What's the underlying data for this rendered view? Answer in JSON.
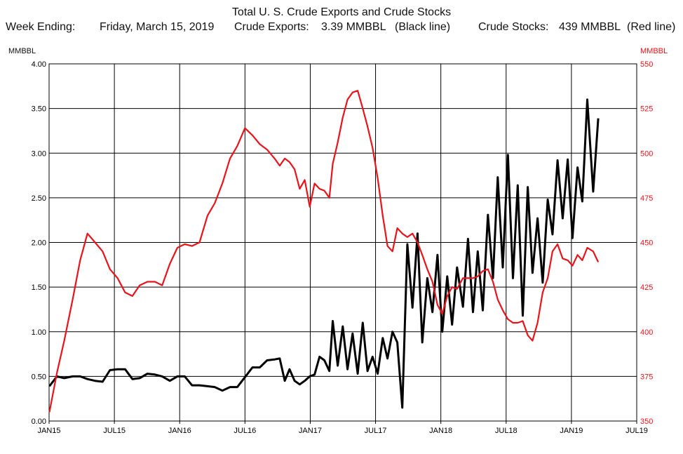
{
  "header": {
    "title": "Total U. S. Crude Exports and Crude Stocks",
    "week_label": "Week Ending:",
    "week_value": "Friday, March 15, 2019",
    "exports_label": "Crude Exports:",
    "exports_value": "3.39 MMBBL",
    "exports_note": "(Black line)",
    "stocks_label": "Crude Stocks:",
    "stocks_value": "439 MMBBL",
    "stocks_note": "(Red line)"
  },
  "colors": {
    "exports": "#000000",
    "stocks": "#e8141b",
    "grid": "#000000",
    "left_axis_text": "#000000",
    "right_axis_text": "#e8141b"
  },
  "chart_data": {
    "type": "line",
    "title": "Total U. S. Crude Exports and Crude Stocks",
    "grid": true,
    "x_ticks": [
      "JAN15",
      "JUL15",
      "JAN16",
      "JUL16",
      "JAN17",
      "JUL17",
      "JAN18",
      "JUL18",
      "JAN19",
      "JUL19"
    ],
    "x_range_months": [
      "2015-01",
      "2019-07"
    ],
    "left_axis": {
      "unit": "MMBBL",
      "ylim": [
        0,
        4
      ],
      "ticks": [
        "0.00",
        "0.50",
        "1.00",
        "1.50",
        "2.00",
        "2.50",
        "3.00",
        "3.50",
        "4.00"
      ]
    },
    "right_axis": {
      "unit": "MMBBL",
      "ylim": [
        350,
        550
      ],
      "ticks": [
        "350",
        "375",
        "400",
        "425",
        "450",
        "475",
        "500",
        "525",
        "550"
      ]
    },
    "series": [
      {
        "name": "Crude Exports",
        "axis": "left",
        "x": [
          "2015-01-02",
          "2015-01-23",
          "2015-02-13",
          "2015-03-06",
          "2015-03-27",
          "2015-04-17",
          "2015-05-08",
          "2015-05-29",
          "2015-06-19",
          "2015-07-10",
          "2015-07-31",
          "2015-08-21",
          "2015-09-11",
          "2015-10-02",
          "2015-10-23",
          "2015-11-13",
          "2015-12-04",
          "2015-12-25",
          "2016-01-15",
          "2016-02-05",
          "2016-02-26",
          "2016-03-18",
          "2016-04-08",
          "2016-04-29",
          "2016-05-20",
          "2016-06-10",
          "2016-07-01",
          "2016-07-22",
          "2016-08-12",
          "2016-09-02",
          "2016-09-23",
          "2016-10-07",
          "2016-10-21",
          "2016-11-04",
          "2016-11-18",
          "2016-12-02",
          "2016-12-16",
          "2016-12-30",
          "2017-01-13",
          "2017-01-27",
          "2017-02-10",
          "2017-02-24",
          "2017-03-03",
          "2017-03-17",
          "2017-03-31",
          "2017-04-14",
          "2017-04-28",
          "2017-05-12",
          "2017-05-26",
          "2017-06-09",
          "2017-06-23",
          "2017-07-07",
          "2017-07-21",
          "2017-08-04",
          "2017-08-18",
          "2017-09-01",
          "2017-09-15",
          "2017-09-29",
          "2017-10-13",
          "2017-10-27",
          "2017-11-10",
          "2017-11-24",
          "2017-12-08",
          "2017-12-22",
          "2018-01-05",
          "2018-01-19",
          "2018-02-02",
          "2018-02-16",
          "2018-03-02",
          "2018-03-16",
          "2018-03-30",
          "2018-04-13",
          "2018-04-27",
          "2018-05-11",
          "2018-05-25",
          "2018-06-08",
          "2018-06-22",
          "2018-07-06",
          "2018-07-20",
          "2018-08-03",
          "2018-08-17",
          "2018-08-31",
          "2018-09-14",
          "2018-09-28",
          "2018-10-12",
          "2018-10-26",
          "2018-11-09",
          "2018-11-23",
          "2018-12-07",
          "2018-12-21",
          "2019-01-04",
          "2019-01-18",
          "2019-02-01",
          "2019-02-15",
          "2019-03-01",
          "2019-03-15"
        ],
        "values": [
          0.39,
          0.5,
          0.48,
          0.5,
          0.5,
          0.47,
          0.45,
          0.44,
          0.57,
          0.58,
          0.58,
          0.47,
          0.48,
          0.53,
          0.52,
          0.5,
          0.45,
          0.5,
          0.5,
          0.4,
          0.4,
          0.39,
          0.38,
          0.34,
          0.38,
          0.38,
          0.49,
          0.6,
          0.6,
          0.68,
          0.69,
          0.7,
          0.45,
          0.58,
          0.45,
          0.41,
          0.45,
          0.5,
          0.52,
          0.72,
          0.68,
          0.56,
          1.12,
          0.62,
          1.06,
          0.58,
          0.98,
          0.53,
          1.1,
          0.56,
          0.72,
          0.53,
          0.93,
          0.7,
          1.0,
          0.88,
          0.15,
          1.98,
          1.27,
          2.1,
          0.88,
          1.6,
          1.22,
          1.86,
          1.0,
          1.62,
          1.08,
          1.72,
          1.28,
          2.04,
          1.22,
          1.9,
          1.24,
          2.31,
          1.6,
          2.73,
          1.72,
          2.98,
          1.6,
          2.64,
          1.18,
          2.62,
          1.66,
          2.27,
          1.55,
          2.48,
          2.09,
          2.92,
          2.27,
          2.93,
          2.05,
          2.84,
          2.46,
          3.6,
          2.57,
          3.39
        ]
      },
      {
        "name": "Crude Stocks",
        "axis": "right",
        "x": [
          "2015-01-02",
          "2015-01-23",
          "2015-02-13",
          "2015-03-06",
          "2015-03-27",
          "2015-04-17",
          "2015-05-08",
          "2015-05-29",
          "2015-06-19",
          "2015-07-10",
          "2015-07-31",
          "2015-08-21",
          "2015-09-11",
          "2015-10-02",
          "2015-10-23",
          "2015-11-13",
          "2015-12-04",
          "2015-12-25",
          "2016-01-15",
          "2016-02-05",
          "2016-02-26",
          "2016-03-18",
          "2016-04-08",
          "2016-04-29",
          "2016-05-20",
          "2016-06-10",
          "2016-07-01",
          "2016-07-22",
          "2016-08-12",
          "2016-09-02",
          "2016-09-23",
          "2016-10-07",
          "2016-10-21",
          "2016-11-04",
          "2016-11-18",
          "2016-12-02",
          "2016-12-16",
          "2016-12-30",
          "2017-01-13",
          "2017-01-27",
          "2017-02-10",
          "2017-02-24",
          "2017-03-03",
          "2017-03-17",
          "2017-03-31",
          "2017-04-14",
          "2017-04-28",
          "2017-05-12",
          "2017-05-26",
          "2017-06-09",
          "2017-06-23",
          "2017-07-07",
          "2017-07-21",
          "2017-08-04",
          "2017-08-18",
          "2017-09-01",
          "2017-09-15",
          "2017-09-29",
          "2017-10-13",
          "2017-10-27",
          "2017-11-10",
          "2017-11-24",
          "2017-12-08",
          "2017-12-22",
          "2018-01-05",
          "2018-01-19",
          "2018-02-02",
          "2018-02-16",
          "2018-03-02",
          "2018-03-16",
          "2018-03-30",
          "2018-04-13",
          "2018-04-27",
          "2018-05-11",
          "2018-05-25",
          "2018-06-08",
          "2018-06-22",
          "2018-07-06",
          "2018-07-20",
          "2018-08-03",
          "2018-08-17",
          "2018-08-31",
          "2018-09-14",
          "2018-09-28",
          "2018-10-12",
          "2018-10-26",
          "2018-11-09",
          "2018-11-23",
          "2018-12-07",
          "2018-12-21",
          "2019-01-04",
          "2019-01-18",
          "2019-02-01",
          "2019-02-15",
          "2019-03-01",
          "2019-03-15"
        ],
        "values": [
          355,
          377,
          395,
          418,
          440,
          455,
          450,
          445,
          435,
          430,
          422,
          420,
          426,
          428,
          428,
          426,
          438,
          447,
          449,
          448,
          450,
          465,
          472,
          483,
          497,
          504,
          514,
          510,
          505,
          502,
          497,
          493,
          497,
          495,
          491,
          480,
          485,
          470,
          483,
          480,
          479,
          475,
          494,
          506,
          520,
          530,
          534,
          535,
          525,
          515,
          503,
          486,
          465,
          448,
          445,
          458,
          455,
          453,
          455,
          450,
          443,
          435,
          428,
          415,
          410,
          420,
          425,
          424,
          430,
          430,
          430,
          431,
          434,
          435,
          428,
          418,
          412,
          407,
          405,
          405,
          406,
          398,
          395,
          405,
          422,
          430,
          445,
          449,
          441,
          440,
          437,
          443,
          440,
          447,
          445,
          439
        ]
      }
    ]
  }
}
